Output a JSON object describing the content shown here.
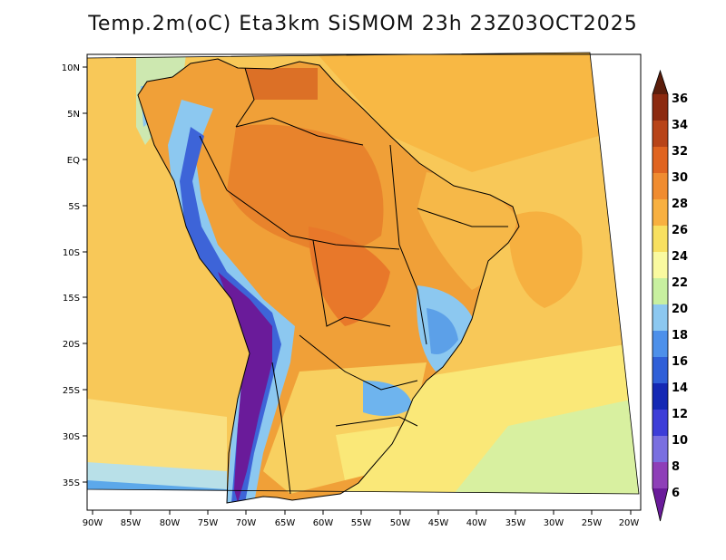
{
  "title": "Temp.2m(oC) Eta3km SiSMOM 23h 23Z03OCT2025",
  "lat_labels": [
    "10N",
    "5N",
    "EQ",
    "5S",
    "10S",
    "15S",
    "20S",
    "25S",
    "30S",
    "35S"
  ],
  "lon_labels": [
    "90W",
    "85W",
    "80W",
    "75W",
    "70W",
    "65W",
    "60W",
    "55W",
    "50W",
    "45W",
    "40W",
    "35W",
    "30W",
    "25W",
    "20W"
  ],
  "colorbar": {
    "labels": [
      "6",
      "8",
      "10",
      "12",
      "14",
      "16",
      "18",
      "20",
      "22",
      "24",
      "26",
      "28",
      "30",
      "32",
      "34",
      "36"
    ],
    "colors": [
      "#6a1b9a",
      "#8e3fb8",
      "#7a6fe0",
      "#3d3dd8",
      "#1428b4",
      "#2f5fd8",
      "#4d90ea",
      "#8cc8f0",
      "#c8f0a0",
      "#fafaa0",
      "#f8e060",
      "#f8b040",
      "#f08c30",
      "#e06420",
      "#b84418",
      "#8c2a10",
      "#5c1e0c"
    ]
  }
}
